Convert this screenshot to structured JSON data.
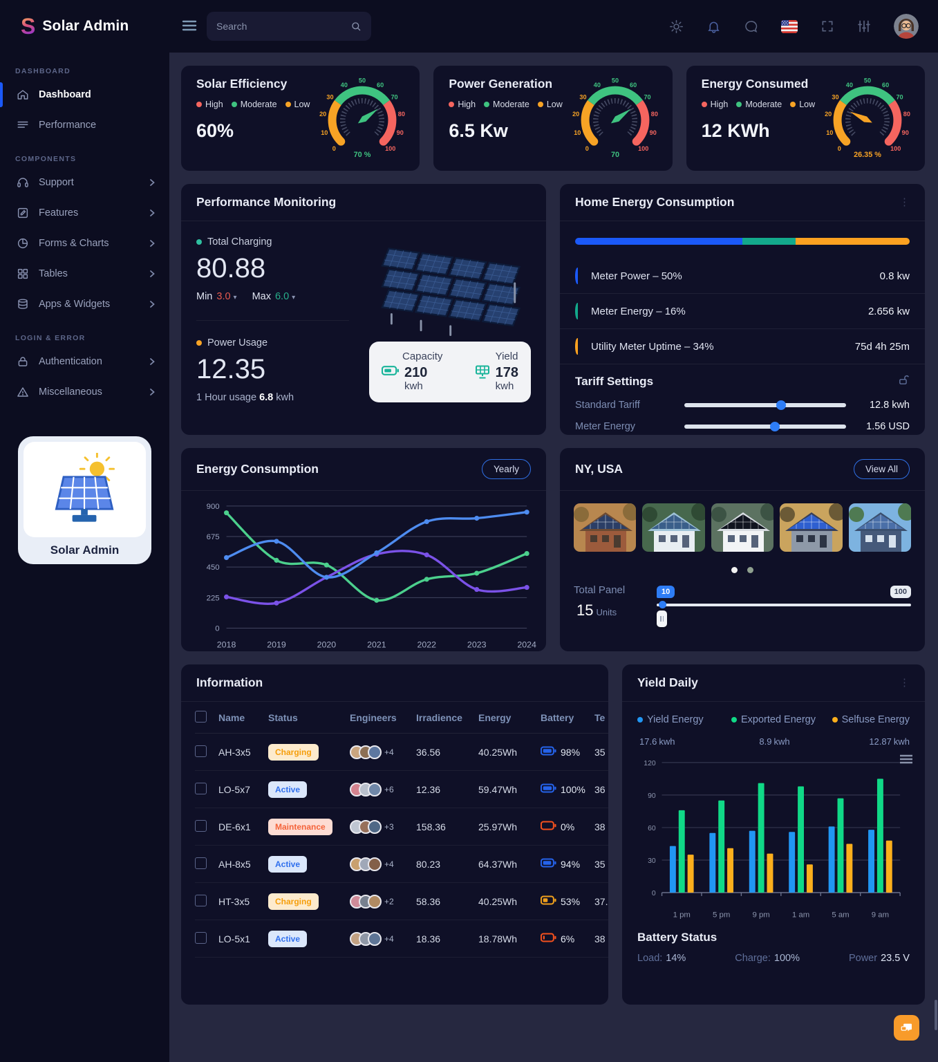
{
  "header": {
    "logo": "Solar Admin",
    "search_placeholder": "Search"
  },
  "sidebar": {
    "sections": [
      {
        "heading": "DASHBOARD",
        "items": [
          {
            "label": "Dashboard",
            "icon": "home",
            "active": true
          },
          {
            "label": "Performance",
            "icon": "lines"
          }
        ]
      },
      {
        "heading": "COMPONENTS",
        "items": [
          {
            "label": "Support",
            "icon": "headset",
            "chevron": true
          },
          {
            "label": "Features",
            "icon": "edit",
            "chevron": true
          },
          {
            "label": "Forms & Charts",
            "icon": "pie",
            "chevron": true
          },
          {
            "label": "Tables",
            "icon": "grid",
            "chevron": true
          },
          {
            "label": "Apps & Widgets",
            "icon": "stack",
            "chevron": true
          }
        ]
      },
      {
        "heading": "LOGIN & ERROR",
        "items": [
          {
            "label": "Authentication",
            "icon": "lock",
            "chevron": true
          },
          {
            "label": "Miscellaneous",
            "icon": "warning",
            "chevron": true
          }
        ]
      }
    ],
    "brand_caption": "Solar Admin"
  },
  "gauge_legend": [
    {
      "label": "High",
      "color": "#f5655f"
    },
    {
      "label": "Moderate",
      "color": "#3fc380"
    },
    {
      "label": "Low",
      "color": "#f7a325"
    }
  ],
  "gauges": [
    {
      "title": "Solar Efficiency",
      "value": "60%",
      "gauge_value": 70,
      "gauge_label": "70 %",
      "needle_color": "#3fc380"
    },
    {
      "title": "Power Generation",
      "value": "6.5 Kw",
      "gauge_value": 70,
      "gauge_label": "70",
      "needle_color": "#3fc380"
    },
    {
      "title": "Energy Consumed",
      "value": "12 KWh",
      "gauge_value": 26.35,
      "gauge_label": "26.35 %",
      "needle_color": "#f7a325"
    }
  ],
  "performance": {
    "title": "Performance Monitoring",
    "total_charging_label": "Total Charging",
    "total_charging_value": "80.88",
    "min_label": "Min",
    "min_value": "3.0",
    "max_label": "Max",
    "max_value": "6.0",
    "power_usage_label": "Power Usage",
    "power_usage_value": "12.35",
    "hour_usage_prefix": "1 Hour usage",
    "hour_usage_value": "6.8",
    "hour_usage_suffix": "kwh",
    "stats": [
      {
        "label": "Capacity",
        "value": "210",
        "unit": "kwh",
        "icon": "battery"
      },
      {
        "label": "Yield",
        "value": "178",
        "unit": "kwh",
        "icon": "panel"
      }
    ]
  },
  "home_energy": {
    "title": "Home Energy Consumption",
    "bar_segments": [
      {
        "pct": 50,
        "color": "#1b59f8"
      },
      {
        "pct": 16,
        "color": "#13a98c"
      },
      {
        "pct": 34,
        "color": "#fca120"
      }
    ],
    "rows": [
      {
        "label": "Meter Power – 50%",
        "value": "0.8 kw",
        "color": "#1b59f8"
      },
      {
        "label": "Meter Energy – 16%",
        "value": "2.656 kw",
        "color": "#13a98c"
      },
      {
        "label": "Utility Meter Uptime – 34%",
        "value": "75d 4h 25m",
        "color": "#fca120"
      }
    ],
    "tariff_title": "Tariff Settings",
    "tariff_rows": [
      {
        "label": "Standard Tariff",
        "value": "12.8 kwh",
        "pct": 60
      },
      {
        "label": "Meter Energy",
        "value": "1.56 USD",
        "pct": 56
      }
    ]
  },
  "energy_consumption": {
    "title": "Energy Consumption",
    "button": "Yearly"
  },
  "ny": {
    "title": "NY, USA",
    "button": "View All",
    "total_panel_label": "Total Panel",
    "units_value": "15",
    "units_label": "Units",
    "slider_min_label": "10",
    "slider_max_label": "100",
    "houses": [
      {
        "sky": "#b8874f",
        "tree": "#8a6b3a",
        "body": "#9c5b3c",
        "roof": "#6b4a33",
        "panel": "#2b3e66",
        "win": "#4a3b30"
      },
      {
        "sky": "#47684d",
        "tree": "#2f4a34",
        "body": "#e8eef2",
        "roof": "#9fc3d8",
        "panel": "#3a5f8a",
        "win": "#56637a"
      },
      {
        "sky": "#5c7261",
        "tree": "#3c5344",
        "body": "#f2f4f6",
        "roof": "#d8dde2",
        "panel": "#10141f",
        "win": "#56637a"
      },
      {
        "sky": "#caa45e",
        "tree": "#6b5a36",
        "body": "#8e99a8",
        "roof": "#37405a",
        "panel": "#2e5fd0",
        "win": "#2c3444"
      },
      {
        "sky": "#7db3e0",
        "tree": "#4f7a52",
        "body": "#45597a",
        "roof": "#3a4f6e",
        "panel": "#4a6fa8",
        "win": "#d7e2ee"
      }
    ]
  },
  "information": {
    "title": "Information",
    "columns": [
      "Name",
      "Status",
      "Engineers",
      "Irradience",
      "Energy",
      "Battery",
      "Te"
    ],
    "rows": [
      {
        "name": "AH-3x5",
        "status": "Charging",
        "engineers": "+4",
        "irradience": "36.56",
        "energy": "40.25Wh",
        "battery_pct": "98%",
        "battery_level": 98,
        "battery_color": "#2563eb",
        "temp": "35"
      },
      {
        "name": "LO-5x7",
        "status": "Active",
        "engineers": "+6",
        "irradience": "12.36",
        "energy": "59.47Wh",
        "battery_pct": "100%",
        "battery_level": 100,
        "battery_color": "#2563eb",
        "temp": "36"
      },
      {
        "name": "DE-6x1",
        "status": "Maintenance",
        "engineers": "+3",
        "irradience": "158.36",
        "energy": "25.97Wh",
        "battery_pct": "0%",
        "battery_level": 0,
        "battery_color": "#f4511e",
        "temp": "38"
      },
      {
        "name": "AH-8x5",
        "status": "Active",
        "engineers": "+4",
        "irradience": "80.23",
        "energy": "64.37Wh",
        "battery_pct": "94%",
        "battery_level": 94,
        "battery_color": "#2563eb",
        "temp": "35"
      },
      {
        "name": "HT-3x5",
        "status": "Charging",
        "engineers": "+2",
        "irradience": "58.36",
        "energy": "40.25Wh",
        "battery_pct": "53%",
        "battery_level": 53,
        "battery_color": "#f0a01c",
        "temp": "37."
      },
      {
        "name": "LO-5x1",
        "status": "Active",
        "engineers": "+4",
        "irradience": "18.36",
        "energy": "18.78Wh",
        "battery_pct": "6%",
        "battery_level": 6,
        "battery_color": "#f4511e",
        "temp": "38"
      }
    ]
  },
  "yield_daily": {
    "title": "Yield Daily",
    "legends": [
      {
        "label": "Yield Energy",
        "value": "17.6",
        "unit": "kwh",
        "color": "#2196f3"
      },
      {
        "label": "Exported Energy",
        "value": "8.9",
        "unit": "kwh",
        "color": "#10d987"
      },
      {
        "label": "Selfuse Energy",
        "value": "12.87",
        "unit": "kwh",
        "color": "#fcaf1c"
      }
    ],
    "battery_title": "Battery Status",
    "battery_items": [
      {
        "label": "Load:",
        "value": "14%"
      },
      {
        "label": "Charge:",
        "value": "100%"
      },
      {
        "label": "Power",
        "value": "23.5 V"
      }
    ]
  },
  "chart_data": [
    {
      "id": "energy_consumption",
      "type": "line",
      "title": "Energy Consumption",
      "x": [
        2018,
        2019,
        2020,
        2021,
        2022,
        2023,
        2024
      ],
      "ylim": [
        0,
        900
      ],
      "yticks": [
        0,
        225,
        450,
        675,
        900
      ],
      "series": [
        {
          "name": "green",
          "color": "#4cd08d",
          "values": [
            850,
            500,
            465,
            205,
            360,
            405,
            550
          ]
        },
        {
          "name": "blue",
          "color": "#4e8cf0",
          "values": [
            520,
            640,
            375,
            555,
            785,
            810,
            855
          ]
        },
        {
          "name": "purple",
          "color": "#7b52e8",
          "values": [
            230,
            185,
            375,
            545,
            540,
            285,
            300
          ]
        }
      ]
    },
    {
      "id": "yield_daily",
      "type": "bar",
      "categories": [
        "1 pm",
        "5 pm",
        "9 pm",
        "1 am",
        "5 am",
        "9 am"
      ],
      "ylim": [
        0,
        120
      ],
      "yticks": [
        0,
        30,
        60,
        90,
        120
      ],
      "series": [
        {
          "name": "Yield Energy",
          "color": "#2196f3",
          "values": [
            43,
            55,
            57,
            56,
            61,
            58
          ]
        },
        {
          "name": "Exported Energy",
          "color": "#10d987",
          "values": [
            76,
            85,
            101,
            98,
            87,
            105
          ]
        },
        {
          "name": "Selfuse Energy",
          "color": "#fcaf1c",
          "values": [
            35,
            41,
            36,
            26,
            45,
            48
          ]
        }
      ]
    }
  ]
}
